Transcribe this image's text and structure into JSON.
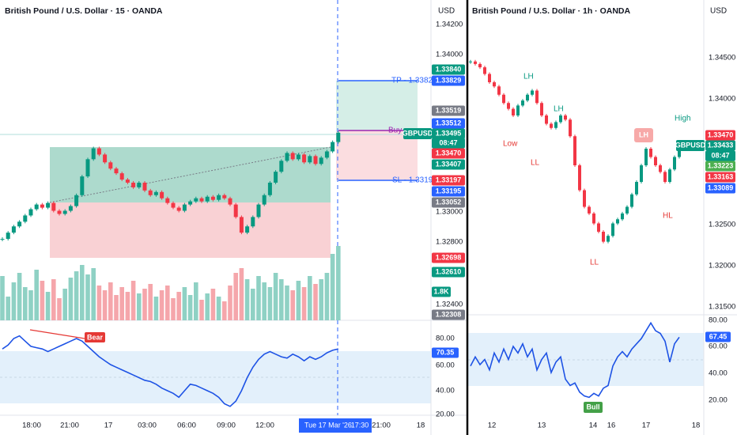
{
  "left": {
    "title": "British Pound / U.S. Dollar · 15 · OANDA",
    "currency": "USD",
    "price_axis": [
      "1.34200",
      "1.34000",
      "1.33000",
      "1.32800",
      "1.32400"
    ],
    "tags": [
      "1.33840",
      "1.33829",
      "1.33519",
      "1.33512",
      "1.33495",
      "1.33470",
      "1.33407",
      "1.33197",
      "1.33195",
      "1.33052",
      "1.32698",
      "1.32610",
      "1.32308"
    ],
    "rsi_axis": [
      "80.00",
      "60.00",
      "40.00",
      "20.00"
    ],
    "rsi_tag": "70.35",
    "time_axis": [
      "18:00",
      "21:00",
      "17",
      "03:00",
      "06:00",
      "09:00",
      "12:00",
      "21:00",
      "18"
    ],
    "crosshair_date": "Tue 17 Mar '26",
    "crosshair_time": "17:30",
    "labels": {
      "tp": "TP - 1.33829",
      "buy": "Buy",
      "sl": "SL - 1.33195",
      "symbol": "GBPUSD",
      "countdown": "08:47",
      "volume": "1.8K",
      "bear": "Bear"
    },
    "candles": [
      1.3282,
      1.3286,
      1.329,
      1.3293,
      1.3297,
      1.3301,
      1.3304,
      1.3302,
      1.3305,
      1.33,
      1.3298,
      1.33,
      1.3303,
      1.331,
      1.3322,
      1.3333,
      1.334,
      1.3336,
      1.3331,
      1.3327,
      1.3324,
      1.332,
      1.3318,
      1.3315,
      1.3318,
      1.3313,
      1.331,
      1.3312,
      1.3308,
      1.3305,
      1.3302,
      1.33,
      1.3304,
      1.3306,
      1.3308,
      1.3306,
      1.3309,
      1.3307,
      1.331,
      1.3308,
      1.3304,
      1.3296,
      1.3286,
      1.329,
      1.3296,
      1.3304,
      1.331,
      1.3318,
      1.3325,
      1.3332,
      1.3337,
      1.3333,
      1.3336,
      1.3331,
      1.3335,
      1.333,
      1.3334,
      1.3338,
      1.3344,
      1.335
    ],
    "volume": [
      2.8,
      1.5,
      2.4,
      3.0,
      2.1,
      1.9,
      3.2,
      2.5,
      1.8,
      2.6,
      1.4,
      2.0,
      2.7,
      3.1,
      3.5,
      2.9,
      3.3,
      2.2,
      1.9,
      2.4,
      1.6,
      2.1,
      1.8,
      2.5,
      1.7,
      2.0,
      2.3,
      1.5,
      1.9,
      2.2,
      1.4,
      1.8,
      2.1,
      1.6,
      2.4,
      1.3,
      1.7,
      2.0,
      1.5,
      1.2,
      2.2,
      3.0,
      3.3,
      2.6,
      2.0,
      2.8,
      2.4,
      2.1,
      3.0,
      2.6,
      2.2,
      1.9,
      2.5,
      2.1,
      2.8,
      2.3,
      2.6,
      3.0,
      4.2,
      4.7
    ],
    "rsi": [
      72,
      75,
      80,
      82,
      78,
      74,
      73,
      72,
      70,
      72,
      74,
      76,
      78,
      80,
      78,
      74,
      70,
      66,
      63,
      60,
      58,
      56,
      54,
      52,
      50,
      48,
      47,
      45,
      42,
      40,
      38,
      35,
      40,
      45,
      44,
      42,
      40,
      38,
      35,
      30,
      28,
      32,
      40,
      50,
      58,
      64,
      68,
      70,
      68,
      66,
      65,
      68,
      66,
      63,
      66,
      64,
      66,
      69,
      71,
      72
    ]
  },
  "right": {
    "title": "British Pound / U.S. Dollar · 1h · OANDA",
    "currency": "USD",
    "price_axis": [
      "1.34500",
      "1.34000",
      "1.32500",
      "1.32000",
      "1.31500"
    ],
    "tags": [
      "1.33470",
      "1.33433",
      "1.33223",
      "1.33163",
      "1.33089"
    ],
    "rsi_axis": [
      "80.00",
      "60.00",
      "40.00",
      "20.00"
    ],
    "rsi_tag": "67.45",
    "time_axis": [
      "12",
      "13",
      "14",
      "16",
      "17",
      "18"
    ],
    "labels": {
      "symbol": "GBPUSD",
      "countdown": "08:47",
      "lh1": "LH",
      "lh2": "LH",
      "low": "Low",
      "ll1": "LL",
      "ll2": "LL",
      "lh3": "LH",
      "high": "High",
      "hl": "HL",
      "bull": "Bull"
    },
    "candles": [
      1.3445,
      1.3442,
      1.3438,
      1.343,
      1.342,
      1.3415,
      1.3405,
      1.3395,
      1.3388,
      1.338,
      1.3392,
      1.3398,
      1.3405,
      1.341,
      1.3395,
      1.338,
      1.337,
      1.3365,
      1.3372,
      1.338,
      1.3375,
      1.3355,
      1.332,
      1.329,
      1.327,
      1.3262,
      1.325,
      1.324,
      1.3228,
      1.3235,
      1.325,
      1.3255,
      1.3262,
      1.327,
      1.3285,
      1.33,
      1.332,
      1.334,
      1.333,
      1.332,
      1.3312,
      1.33,
      1.3315,
      1.333,
      1.3343
    ],
    "rsi": [
      45,
      52,
      46,
      50,
      42,
      55,
      48,
      58,
      50,
      60,
      55,
      62,
      52,
      58,
      42,
      50,
      55,
      40,
      48,
      52,
      35,
      30,
      32,
      25,
      22,
      21,
      24,
      22,
      28,
      30,
      45,
      52,
      56,
      52,
      58,
      62,
      66,
      72,
      78,
      72,
      70,
      64,
      48,
      62,
      67
    ]
  }
}
